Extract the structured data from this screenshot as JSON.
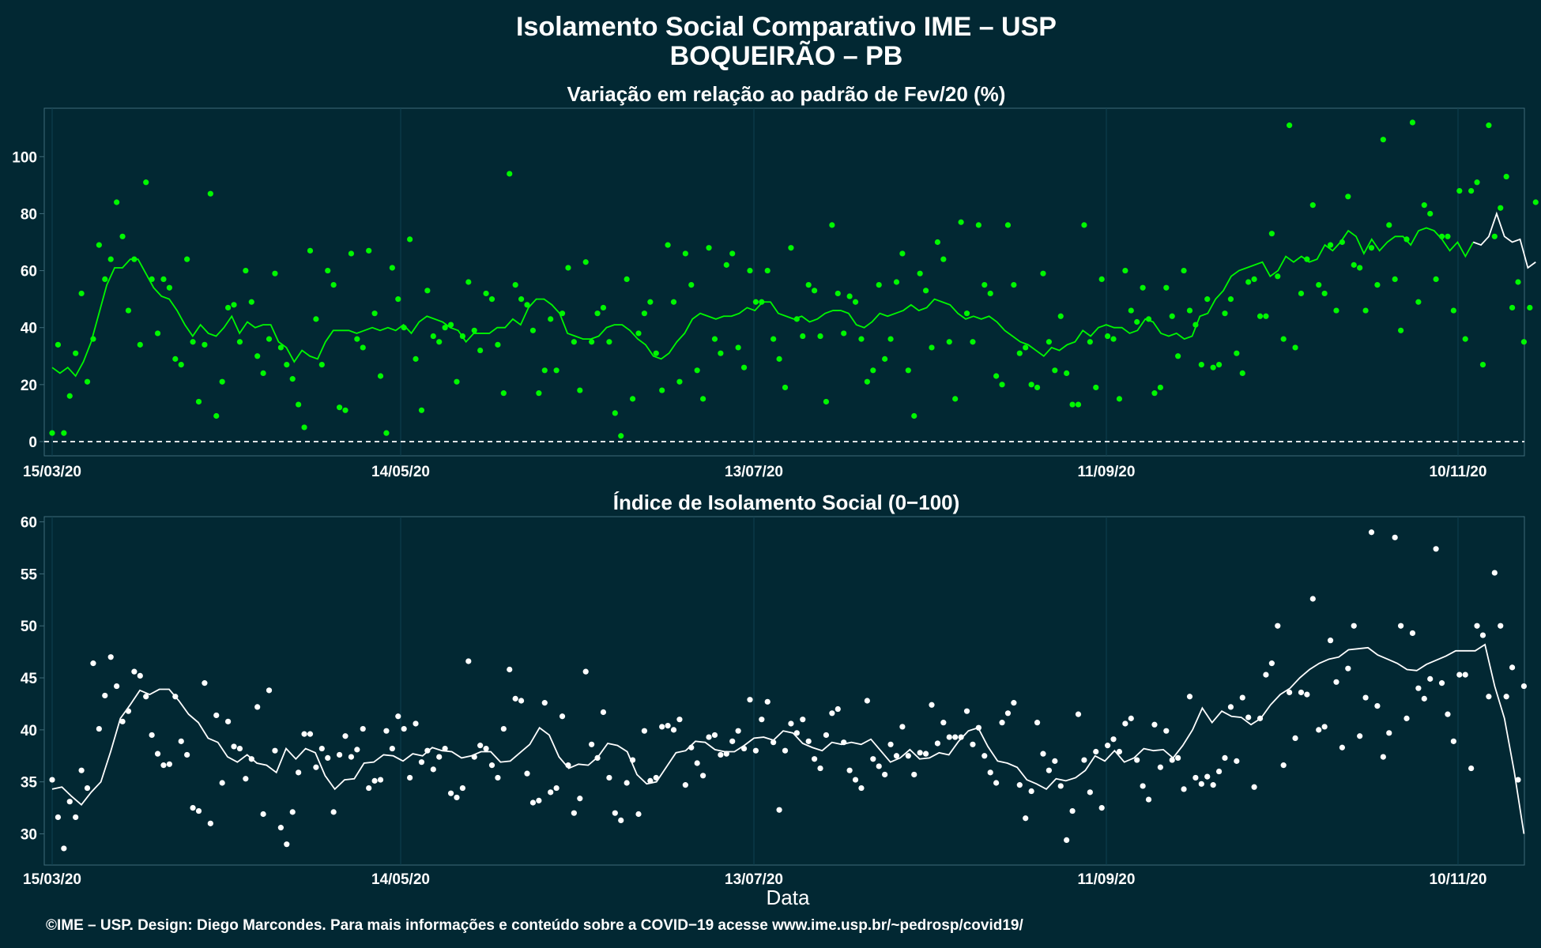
{
  "header": {
    "title_line1": "Isolamento Social Comparativo IME – USP",
    "title_line2": "BOQUEIRÃO – PB"
  },
  "footer": {
    "credit": "©IME – USP. Design: Diego Marcondes. Para mais informações e conteúdo sobre a COVID−19 acesse www.ime.usp.br/~pedrosp/covid19/"
  },
  "colors": {
    "background": "#022833",
    "panel_border": "#3f6a78",
    "grid": "#0e4150",
    "series_variation": "#00f700",
    "series_index": "#ffffff"
  },
  "chart_data": [
    {
      "type": "scatter",
      "title": "Variação em relação ao padrão de Fev/20 (%)",
      "xlabel": "",
      "ylabel": "",
      "x_start": "2020-03-15",
      "x_ticks": [
        "15/03/20",
        "14/05/20",
        "13/07/20",
        "11/09/20",
        "10/11/20"
      ],
      "ylim": [
        -5,
        117
      ],
      "y_ticks": [
        0,
        20,
        40,
        60,
        80,
        100
      ],
      "reference_line": 0,
      "points_color": "#00f700",
      "line_color": "#00f700",
      "line_end_color": "#ffffff",
      "values": [
        3,
        34,
        3,
        16,
        31,
        52,
        21,
        36,
        69,
        57,
        64,
        84,
        72,
        46,
        64,
        34,
        91,
        57,
        38,
        57,
        54,
        29,
        27,
        64,
        35,
        14,
        34,
        87,
        9,
        21,
        47,
        48,
        35,
        60,
        49,
        30,
        24,
        36,
        59,
        33,
        27,
        22,
        13,
        5,
        67,
        43,
        27,
        60,
        55,
        12,
        11,
        66,
        36,
        33,
        67,
        45,
        23,
        3,
        61,
        50,
        40,
        71,
        29,
        11,
        53,
        37,
        35,
        40,
        41,
        21,
        37,
        56,
        39,
        32,
        52,
        50,
        34,
        17,
        94,
        55,
        50,
        48,
        39,
        17,
        25,
        43,
        25,
        45,
        61,
        35,
        18,
        63,
        35,
        45,
        47,
        35,
        10,
        2,
        57,
        15,
        38,
        45,
        49,
        31,
        18,
        69,
        49,
        21,
        66,
        55,
        25,
        15,
        68,
        36,
        31,
        62,
        66,
        33,
        26,
        60,
        49,
        49,
        60,
        36,
        29,
        19,
        68,
        43,
        37,
        55,
        53,
        37,
        14,
        76,
        52,
        38,
        51,
        49,
        36,
        21,
        25,
        55,
        29,
        36,
        56,
        66,
        25,
        9,
        59,
        53,
        33,
        70,
        64,
        35,
        15,
        77,
        45,
        35,
        76,
        55,
        52,
        23,
        20,
        76,
        55,
        31,
        33,
        20,
        19,
        59,
        35,
        25,
        44,
        24,
        13,
        13,
        76,
        35,
        19,
        57,
        37,
        36,
        15,
        60,
        46,
        42,
        54,
        43,
        17,
        19,
        54,
        44,
        30,
        60,
        46,
        41,
        27,
        50,
        26,
        27,
        45,
        50,
        31,
        24,
        56,
        57,
        44,
        44,
        73,
        58,
        36,
        111,
        33,
        52,
        64,
        83,
        55,
        52,
        69,
        46,
        70,
        86,
        62,
        61,
        46,
        68,
        55,
        106,
        76,
        57,
        39,
        71,
        112,
        49,
        83,
        80,
        57,
        72,
        72,
        46,
        88,
        36,
        88,
        91,
        27,
        111,
        72,
        82,
        93,
        47,
        56,
        35,
        47,
        84
      ],
      "moving_average": [
        26,
        24,
        26,
        23,
        28,
        35,
        45,
        55,
        61,
        61,
        64,
        64,
        59,
        54,
        51,
        50,
        46,
        41,
        37,
        41,
        38,
        37,
        40,
        44,
        38,
        42,
        40,
        41,
        41,
        35,
        33,
        28,
        32,
        30,
        29,
        35,
        39,
        39,
        39,
        38,
        39,
        40,
        39,
        40,
        39,
        41,
        38,
        42,
        44,
        43,
        42,
        40,
        39,
        35,
        38,
        38,
        38,
        40,
        40,
        43,
        41,
        47,
        50,
        50,
        48,
        45,
        38,
        37,
        36,
        36,
        37,
        40,
        41,
        41,
        39,
        36,
        34,
        30,
        29,
        31,
        35,
        38,
        43,
        45,
        44,
        43,
        44,
        44,
        45,
        47,
        46,
        49,
        49,
        45,
        44,
        43,
        44,
        42,
        43,
        45,
        46,
        46,
        45,
        41,
        40,
        42,
        45,
        44,
        45,
        46,
        48,
        46,
        47,
        50,
        49,
        48,
        45,
        43,
        44,
        43,
        44,
        42,
        39,
        37,
        35,
        34,
        32,
        30,
        33,
        32,
        34,
        35,
        39,
        37,
        40,
        41,
        40,
        40,
        38,
        39,
        43,
        42,
        38,
        37,
        38,
        36,
        37,
        44,
        45,
        50,
        53,
        58,
        60,
        61,
        62,
        63,
        58,
        60,
        65,
        63,
        65,
        63,
        64,
        69,
        67,
        70,
        74,
        72,
        66,
        71,
        67,
        70,
        72,
        72,
        69,
        74,
        75,
        74,
        71,
        67,
        70,
        65,
        70,
        69,
        72,
        80,
        72,
        70,
        71,
        61,
        63
      ]
    },
    {
      "type": "scatter",
      "title": "Índice de Isolamento Social (0−100)",
      "xlabel": "Data",
      "ylabel": "",
      "x_start": "2020-03-15",
      "x_ticks": [
        "15/03/20",
        "14/05/20",
        "13/07/20",
        "11/09/20",
        "10/11/20"
      ],
      "ylim": [
        27,
        60.5
      ],
      "y_ticks": [
        30,
        35,
        40,
        45,
        50,
        55,
        60
      ],
      "points_color": "#ffffff",
      "line_color": "#ffffff",
      "values": [
        35.2,
        31.6,
        28.6,
        33.1,
        31.6,
        36.1,
        34.4,
        46.4,
        40.1,
        43.3,
        47,
        44.2,
        40.8,
        41.8,
        45.6,
        45.2,
        43.2,
        39.5,
        37.7,
        36.6,
        36.7,
        43.2,
        38.9,
        37.6,
        32.5,
        32.2,
        44.5,
        31,
        41.4,
        34.9,
        40.8,
        38.4,
        38.2,
        35.3,
        37.2,
        42.2,
        31.9,
        43.8,
        38,
        30.6,
        29,
        32.1,
        35.9,
        39.6,
        39.6,
        36.4,
        38.2,
        37.3,
        32.1,
        37.6,
        39.4,
        37.4,
        38.1,
        40.1,
        34.4,
        35.1,
        35.2,
        39.9,
        38.2,
        41.3,
        40.1,
        35.4,
        40.6,
        36.9,
        38,
        36.2,
        37.4,
        38.2,
        33.9,
        33.5,
        34.4,
        46.6,
        37.4,
        38.5,
        38.2,
        36.6,
        35.4,
        40.1,
        45.8,
        43,
        42.8,
        35.8,
        33,
        33.2,
        42.6,
        34,
        34.4,
        41.3,
        36.6,
        32,
        33.4,
        45.6,
        38.6,
        37.3,
        41.7,
        35.4,
        32,
        31.3,
        34.9,
        37.1,
        31.9,
        39.9,
        35.1,
        35.4,
        40.3,
        40.4,
        40,
        41,
        34.7,
        38.3,
        36.8,
        35.6,
        39.3,
        39.5,
        37.6,
        37.7,
        38.9,
        39.9,
        38.2,
        42.9,
        38,
        41,
        42.7,
        38.8,
        32.3,
        38,
        40.6,
        39.7,
        41,
        38.9,
        37.2,
        36.3,
        39.5,
        41.6,
        42,
        38.8,
        36.1,
        35.2,
        34.4,
        42.8,
        37.2,
        36.5,
        35.7,
        38.6,
        37.5,
        40.3,
        37.5,
        35.7,
        37.8,
        37.7,
        42.4,
        38.7,
        40.7,
        39.3,
        39.3,
        39.3,
        41.8,
        38.6,
        40.2,
        37.5,
        35.9,
        34.9,
        40.7,
        41.6,
        42.6,
        34.7,
        31.5,
        34.1,
        40.7,
        37.7,
        36.1,
        37,
        34.6,
        29.4,
        32.2,
        41.5,
        37.1,
        34,
        37.9,
        32.5,
        38.5,
        39.1,
        37.9,
        40.6,
        41.1,
        37.1,
        34.6,
        33.3,
        40.5,
        36.4,
        39.9,
        37.1,
        37.3,
        34.3,
        43.2,
        35.4,
        34.8,
        35.5,
        34.7,
        36,
        37.3,
        42.2,
        37,
        43.1,
        41.2,
        34.5,
        41.1,
        45.3,
        46.4,
        50,
        36.6,
        43.6,
        39.2,
        43.6,
        43.4,
        52.6,
        40,
        40.3,
        48.6,
        44.6,
        38.3,
        45.9,
        50,
        39.4,
        43.1,
        59,
        42.3,
        37.4,
        39.7,
        58.5,
        50,
        41.1,
        49.3,
        44,
        43,
        44.9,
        57.4,
        44.5,
        41.5,
        38.9,
        45.3,
        45.3,
        36.3,
        50,
        49.1,
        43.2,
        55.1,
        50,
        43.2,
        46,
        35.2,
        44.2
      ],
      "moving_average": [
        34.3,
        34.5,
        33.6,
        32.8,
        34.0,
        35.0,
        37.9,
        41.1,
        42.4,
        43.8,
        43.4,
        43.9,
        43.9,
        42.8,
        41.5,
        40.7,
        39.2,
        38.8,
        37.4,
        36.9,
        37.6,
        36.8,
        36.6,
        35.9,
        38.2,
        37.2,
        38.2,
        37.8,
        35.6,
        34.3,
        35.2,
        35.3,
        36.8,
        36.9,
        37.6,
        37.5,
        37.0,
        37.7,
        37.5,
        38.3,
        38.0,
        37.9,
        37.3,
        37.5,
        37.9,
        37.9,
        36.9,
        37.0,
        37.8,
        38.6,
        40.2,
        39.5,
        37.4,
        36.3,
        36.7,
        36.6,
        37.4,
        38.7,
        38.5,
        37.9,
        35.7,
        34.8,
        35.0,
        36.4,
        37.8,
        38.0,
        38.9,
        38.8,
        38.1,
        37.9,
        37.9,
        38.5,
        39.2,
        39.3,
        39.0,
        39.9,
        39.7,
        38.7,
        38.3,
        38.0,
        38.8,
        38.6,
        38.8,
        38.6,
        39.1,
        38.0,
        36.9,
        37.3,
        38.1,
        37.2,
        37.3,
        37.8,
        37.6,
        38.9,
        39.9,
        40.2,
        38.4,
        37.0,
        36.8,
        36.4,
        35.2,
        34.8,
        34.3,
        35.3,
        35.1,
        35.4,
        36.1,
        37.5,
        37.0,
        38.0,
        36.9,
        37.3,
        38.2,
        38.0,
        38.1,
        37.3,
        38.5,
        40.0,
        42.1,
        40.7,
        41.8,
        41.3,
        41.2,
        40.5,
        41.1,
        42.4,
        43.4,
        44.0,
        45.0,
        45.8,
        46.4,
        46.8,
        47.0,
        47.7,
        47.8,
        47.9,
        47.2,
        46.8,
        46.4,
        45.8,
        45.7,
        46.3,
        46.7,
        47.1,
        47.6,
        47.6,
        47.6,
        48.2,
        44.2,
        41.1,
        36.0,
        30.0
      ]
    }
  ]
}
